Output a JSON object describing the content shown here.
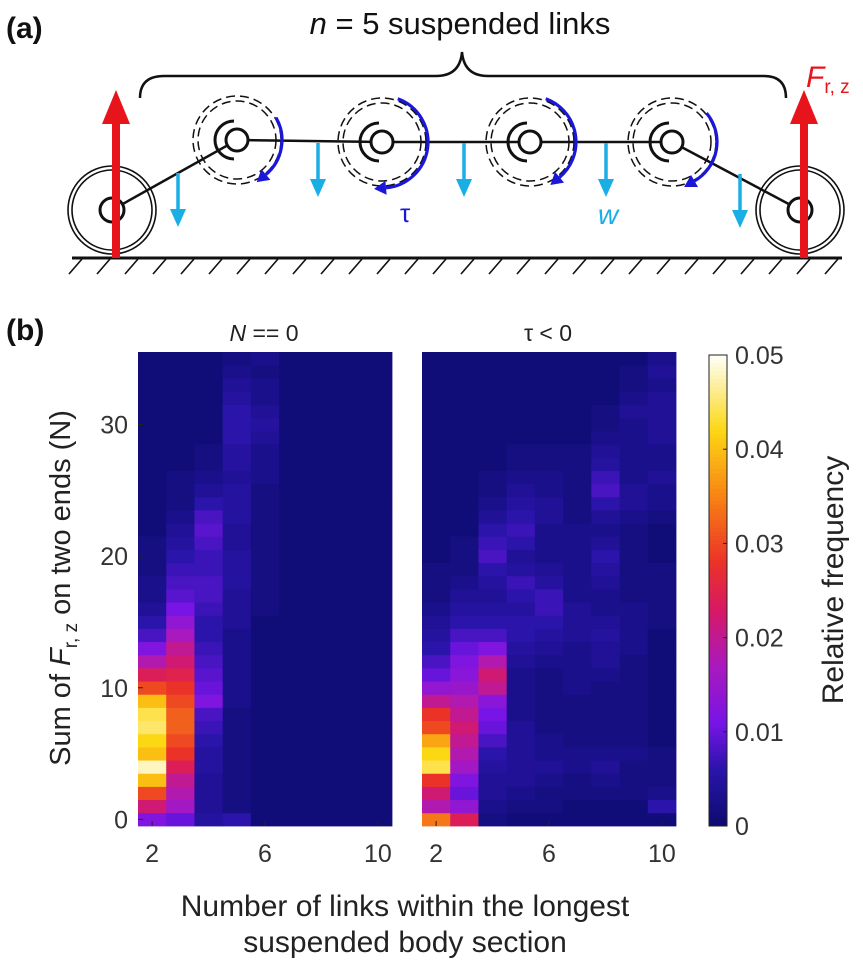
{
  "panel_a": {
    "label": "(a)",
    "title_n": "n",
    "title_rest": " = 5 suspended links",
    "force_main": "F",
    "force_sub": "r, z",
    "torque_label": "τ",
    "weight_label": "w",
    "colors": {
      "force": "#e8141b",
      "torque": "#1a17d6",
      "weight": "#1aaee6"
    }
  },
  "panel_b": {
    "label": "(b)",
    "xlabel_line1": "Number of links within the longest",
    "xlabel_line2": "suspended body section",
    "ylabel_prefix": "Sum of ",
    "ylabel_F": "F",
    "ylabel_sub": "r, z",
    "ylabel_suffix": " on two ends (N)",
    "colorbar_label": "Relative frequency",
    "colormap": "fire (dark blue → purple → red → orange → yellow → white)"
  },
  "chart_data": [
    {
      "type": "heatmap",
      "title_italic": "N",
      "title_rest": " == 0",
      "x_ticks": [
        2,
        6,
        10
      ],
      "y_ticks": [
        0,
        10,
        20,
        30
      ],
      "x_range": [
        1.5,
        10.5
      ],
      "y_range": [
        -0.5,
        35.5
      ],
      "columns": [
        {
          "x": 2,
          "values": [
            0.012,
            0.022,
            0.03,
            0.04,
            0.048,
            0.04,
            0.042,
            0.045,
            0.044,
            0.04,
            0.03,
            0.024,
            0.018,
            0.012,
            0.008,
            0.006,
            0.004,
            0.003,
            0.003,
            0.002,
            0.002,
            0.002,
            0.001,
            0.001,
            0.001,
            0.001,
            0.001,
            0.001,
            0.001,
            0.001,
            0.001,
            0.001,
            0.001,
            0.001,
            0.001,
            0.001
          ]
        },
        {
          "x": 3,
          "values": [
            0.01,
            0.016,
            0.018,
            0.02,
            0.024,
            0.028,
            0.03,
            0.032,
            0.032,
            0.03,
            0.028,
            0.025,
            0.022,
            0.02,
            0.017,
            0.014,
            0.011,
            0.009,
            0.008,
            0.007,
            0.006,
            0.005,
            0.004,
            0.003,
            0.002,
            0.002,
            0.002,
            0.001,
            0.001,
            0.001,
            0.001,
            0.001,
            0.001,
            0.001,
            0.001,
            0.001
          ]
        },
        {
          "x": 4,
          "values": [
            0.005,
            0.004,
            0.004,
            0.004,
            0.005,
            0.005,
            0.006,
            0.007,
            0.008,
            0.012,
            0.01,
            0.009,
            0.008,
            0.007,
            0.006,
            0.006,
            0.007,
            0.008,
            0.008,
            0.007,
            0.007,
            0.008,
            0.009,
            0.008,
            0.006,
            0.004,
            0.003,
            0.002,
            0.002,
            0.001,
            0.001,
            0.001,
            0.001,
            0.001,
            0.001,
            0.001
          ]
        },
        {
          "x": 5,
          "values": [
            0.006,
            0.002,
            0.002,
            0.002,
            0.002,
            0.002,
            0.002,
            0.002,
            0.002,
            0.003,
            0.003,
            0.003,
            0.003,
            0.003,
            0.003,
            0.004,
            0.004,
            0.004,
            0.005,
            0.005,
            0.005,
            0.004,
            0.004,
            0.005,
            0.005,
            0.005,
            0.004,
            0.005,
            0.005,
            0.006,
            0.006,
            0.006,
            0.005,
            0.004,
            0.003,
            0.002
          ]
        },
        {
          "x": 6,
          "values": [
            0.001,
            0.001,
            0.001,
            0.001,
            0.001,
            0.001,
            0.001,
            0.001,
            0.001,
            0.001,
            0.001,
            0.001,
            0.001,
            0.001,
            0.001,
            0.001,
            0.002,
            0.002,
            0.002,
            0.002,
            0.002,
            0.002,
            0.002,
            0.002,
            0.002,
            0.002,
            0.003,
            0.003,
            0.003,
            0.004,
            0.005,
            0.004,
            0.003,
            0.003,
            0.002,
            0.003
          ]
        },
        {
          "x": 7,
          "values": [
            0.001,
            0.001,
            0.001,
            0.001,
            0.001,
            0.001,
            0.001,
            0.001,
            0.001,
            0.001,
            0.001,
            0.001,
            0.001,
            0.001,
            0.001,
            0.001,
            0.001,
            0.001,
            0.001,
            0.001,
            0.001,
            0.001,
            0.001,
            0.001,
            0.001,
            0.001,
            0.001,
            0.001,
            0.001,
            0.001,
            0.001,
            0.001,
            0.001,
            0.001,
            0.001,
            0.001
          ]
        },
        {
          "x": 8,
          "values": [
            0.001,
            0.001,
            0.001,
            0.001,
            0.001,
            0.001,
            0.001,
            0.001,
            0.001,
            0.001,
            0.001,
            0.001,
            0.001,
            0.001,
            0.001,
            0.001,
            0.001,
            0.001,
            0.001,
            0.001,
            0.001,
            0.001,
            0.001,
            0.001,
            0.001,
            0.001,
            0.001,
            0.001,
            0.001,
            0.001,
            0.001,
            0.001,
            0.001,
            0.001,
            0.001,
            0.001
          ]
        },
        {
          "x": 9,
          "values": [
            0.001,
            0.001,
            0.001,
            0.001,
            0.001,
            0.001,
            0.001,
            0.001,
            0.001,
            0.001,
            0.001,
            0.001,
            0.001,
            0.001,
            0.001,
            0.001,
            0.001,
            0.001,
            0.001,
            0.001,
            0.001,
            0.001,
            0.001,
            0.001,
            0.001,
            0.001,
            0.001,
            0.001,
            0.001,
            0.001,
            0.001,
            0.001,
            0.001,
            0.001,
            0.001,
            0.001
          ]
        },
        {
          "x": 10,
          "values": [
            0.001,
            0.001,
            0.001,
            0.001,
            0.001,
            0.001,
            0.001,
            0.001,
            0.001,
            0.001,
            0.001,
            0.001,
            0.001,
            0.001,
            0.001,
            0.001,
            0.001,
            0.001,
            0.001,
            0.001,
            0.001,
            0.001,
            0.001,
            0.001,
            0.001,
            0.001,
            0.001,
            0.001,
            0.001,
            0.001,
            0.001,
            0.001,
            0.001,
            0.001,
            0.001,
            0.001
          ]
        }
      ]
    },
    {
      "type": "heatmap",
      "title_italic": "",
      "title_rest": "τ < 0",
      "x_ticks": [
        2,
        6,
        10
      ],
      "y_ticks": [
        0,
        10,
        20,
        30
      ],
      "x_range": [
        1.5,
        10.5
      ],
      "y_range": [
        -0.5,
        35.5
      ],
      "columns": [
        {
          "x": 2,
          "values": [
            0.034,
            0.018,
            0.022,
            0.028,
            0.044,
            0.042,
            0.038,
            0.03,
            0.028,
            0.02,
            0.014,
            0.01,
            0.008,
            0.006,
            0.005,
            0.004,
            0.003,
            0.002,
            0.002,
            0.002,
            0.001,
            0.001,
            0.001,
            0.001,
            0.001,
            0.001,
            0.001,
            0.001,
            0.001,
            0.001,
            0.001,
            0.001,
            0.001,
            0.001,
            0.001,
            0.001
          ]
        },
        {
          "x": 3,
          "values": [
            0.024,
            0.014,
            0.01,
            0.012,
            0.016,
            0.018,
            0.02,
            0.022,
            0.02,
            0.018,
            0.015,
            0.013,
            0.012,
            0.01,
            0.008,
            0.006,
            0.005,
            0.004,
            0.003,
            0.002,
            0.002,
            0.002,
            0.001,
            0.001,
            0.001,
            0.001,
            0.001,
            0.001,
            0.001,
            0.001,
            0.001,
            0.001,
            0.001,
            0.001,
            0.001,
            0.001
          ]
        },
        {
          "x": 4,
          "values": [
            0.002,
            0.003,
            0.004,
            0.004,
            0.005,
            0.006,
            0.008,
            0.01,
            0.011,
            0.013,
            0.02,
            0.022,
            0.018,
            0.012,
            0.008,
            0.006,
            0.005,
            0.004,
            0.005,
            0.006,
            0.008,
            0.007,
            0.006,
            0.004,
            0.003,
            0.002,
            0.002,
            0.001,
            0.001,
            0.001,
            0.001,
            0.001,
            0.001,
            0.001,
            0.001,
            0.001
          ]
        },
        {
          "x": 5,
          "values": [
            0.001,
            0.002,
            0.003,
            0.004,
            0.004,
            0.004,
            0.004,
            0.004,
            0.003,
            0.003,
            0.003,
            0.003,
            0.004,
            0.005,
            0.006,
            0.006,
            0.005,
            0.006,
            0.007,
            0.005,
            0.004,
            0.006,
            0.007,
            0.006,
            0.005,
            0.004,
            0.003,
            0.002,
            0.002,
            0.001,
            0.001,
            0.001,
            0.001,
            0.001,
            0.001,
            0.001
          ]
        },
        {
          "x": 6,
          "values": [
            0.001,
            0.002,
            0.002,
            0.003,
            0.004,
            0.003,
            0.003,
            0.002,
            0.002,
            0.002,
            0.002,
            0.002,
            0.003,
            0.004,
            0.005,
            0.006,
            0.007,
            0.007,
            0.005,
            0.004,
            0.003,
            0.003,
            0.003,
            0.004,
            0.004,
            0.003,
            0.003,
            0.002,
            0.002,
            0.001,
            0.001,
            0.001,
            0.001,
            0.001,
            0.001,
            0.001
          ]
        },
        {
          "x": 7,
          "values": [
            0.001,
            0.001,
            0.002,
            0.002,
            0.003,
            0.003,
            0.002,
            0.002,
            0.002,
            0.002,
            0.003,
            0.003,
            0.003,
            0.003,
            0.004,
            0.004,
            0.004,
            0.003,
            0.003,
            0.003,
            0.003,
            0.003,
            0.003,
            0.002,
            0.002,
            0.002,
            0.002,
            0.002,
            0.002,
            0.001,
            0.001,
            0.001,
            0.001,
            0.001,
            0.001,
            0.001
          ]
        },
        {
          "x": 8,
          "values": [
            0.001,
            0.001,
            0.002,
            0.003,
            0.004,
            0.003,
            0.002,
            0.002,
            0.002,
            0.002,
            0.002,
            0.003,
            0.004,
            0.004,
            0.005,
            0.004,
            0.003,
            0.003,
            0.004,
            0.005,
            0.006,
            0.004,
            0.003,
            0.004,
            0.006,
            0.008,
            0.007,
            0.005,
            0.004,
            0.003,
            0.002,
            0.002,
            0.001,
            0.001,
            0.001,
            0.001
          ]
        },
        {
          "x": 9,
          "values": [
            0.001,
            0.001,
            0.002,
            0.002,
            0.002,
            0.003,
            0.002,
            0.002,
            0.002,
            0.002,
            0.002,
            0.002,
            0.002,
            0.003,
            0.003,
            0.003,
            0.003,
            0.002,
            0.002,
            0.002,
            0.002,
            0.002,
            0.002,
            0.003,
            0.004,
            0.004,
            0.003,
            0.003,
            0.003,
            0.003,
            0.003,
            0.004,
            0.003,
            0.002,
            0.002,
            0.001
          ]
        },
        {
          "x": 10,
          "values": [
            0.001,
            0.006,
            0.003,
            0.002,
            0.002,
            0.002,
            0.001,
            0.001,
            0.001,
            0.001,
            0.001,
            0.001,
            0.001,
            0.001,
            0.001,
            0.002,
            0.002,
            0.002,
            0.002,
            0.002,
            0.001,
            0.001,
            0.001,
            0.002,
            0.003,
            0.003,
            0.004,
            0.003,
            0.003,
            0.004,
            0.004,
            0.004,
            0.004,
            0.003,
            0.004,
            0.003
          ]
        }
      ]
    }
  ],
  "colorbar": {
    "min": 0,
    "max": 0.05,
    "ticks": [
      0,
      0.01,
      0.02,
      0.03,
      0.04,
      0.05
    ],
    "tick_labels": [
      "0",
      "0.01",
      "0.02",
      "0.03",
      "0.04",
      "0.05"
    ]
  }
}
